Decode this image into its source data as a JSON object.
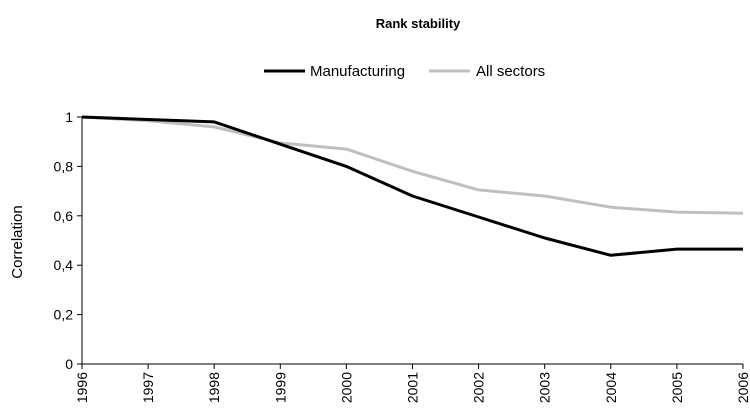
{
  "chart_data": {
    "type": "line",
    "title": "Rank stability",
    "xlabel": "",
    "ylabel": "Correlation",
    "categories": [
      "1996",
      "1997",
      "1998",
      "1999",
      "2000",
      "2001",
      "2002",
      "2003",
      "2004",
      "2005",
      "2006"
    ],
    "y_ticks": [
      "0",
      "0,2",
      "0,4",
      "0,6",
      "0,8",
      "1"
    ],
    "ylim": [
      0,
      1
    ],
    "grid": false,
    "legend_position": "top",
    "series": [
      {
        "name": "Manufacturing",
        "color": "#000000",
        "values": [
          1.0,
          0.99,
          0.98,
          0.89,
          0.8,
          0.68,
          0.595,
          0.51,
          0.44,
          0.465,
          0.465
        ]
      },
      {
        "name": "All sectors",
        "color": "#bfbfbf",
        "values": [
          1.0,
          0.985,
          0.96,
          0.895,
          0.87,
          0.78,
          0.705,
          0.68,
          0.635,
          0.615,
          0.61
        ]
      }
    ]
  }
}
